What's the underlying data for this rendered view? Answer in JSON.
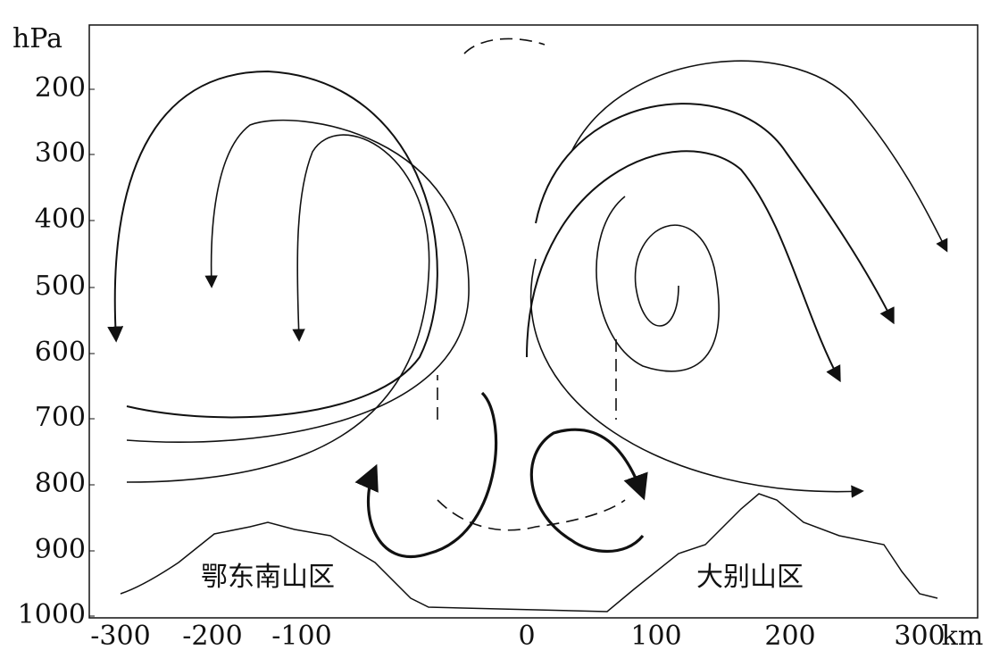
{
  "axes": {
    "y_unit": "hPa",
    "y_ticks": [
      "200",
      "300",
      "400",
      "500",
      "600",
      "700",
      "800",
      "900",
      "1000"
    ],
    "x_ticks": [
      "-300",
      "-200",
      "-100",
      "0",
      "100",
      "200",
      "300"
    ],
    "x_unit": "km"
  },
  "regions": [
    "鄂东南山区",
    "大别山区"
  ]
}
